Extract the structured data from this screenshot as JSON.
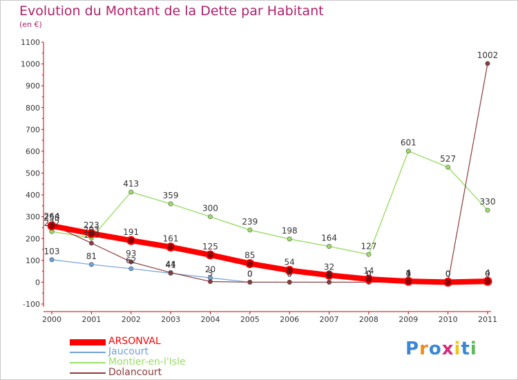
{
  "title": "Evolution du Montant de la Dette par Habitant",
  "unit": "(en €)",
  "brand": "Proxiti",
  "chart_data": {
    "type": "line",
    "x": [
      "2000",
      "2001",
      "2002",
      "2003",
      "2004",
      "2005",
      "2006",
      "2007",
      "2008",
      "2009",
      "2010",
      "2011"
    ],
    "yticks": [
      -100,
      0,
      100,
      200,
      300,
      400,
      500,
      600,
      700,
      800,
      900,
      1000,
      1100
    ],
    "ylim": [
      -100,
      1100
    ],
    "grid": false,
    "legend_position": "bottom-left",
    "series": [
      {
        "name": "ARSONVAL",
        "color": "#ff0000",
        "values": [
          258,
          223,
          191,
          161,
          125,
          85,
          54,
          32,
          14,
          4,
          0,
          4
        ]
      },
      {
        "name": "Jaucourt",
        "color": "#6fa0d8",
        "values": [
          103,
          81,
          62,
          41,
          20,
          0,
          0,
          0,
          0,
          0,
          0,
          0
        ]
      },
      {
        "name": "Montier-en-l'Isle",
        "color": "#99dd66",
        "values": [
          232,
          203,
          413,
          359,
          300,
          239,
          198,
          164,
          127,
          601,
          527,
          330
        ]
      },
      {
        "name": "Dolancourt",
        "color": "#8b3a3a",
        "values": [
          264,
          179,
          93,
          44,
          3,
          0,
          0,
          0,
          0,
          1,
          0,
          1002
        ]
      }
    ]
  }
}
